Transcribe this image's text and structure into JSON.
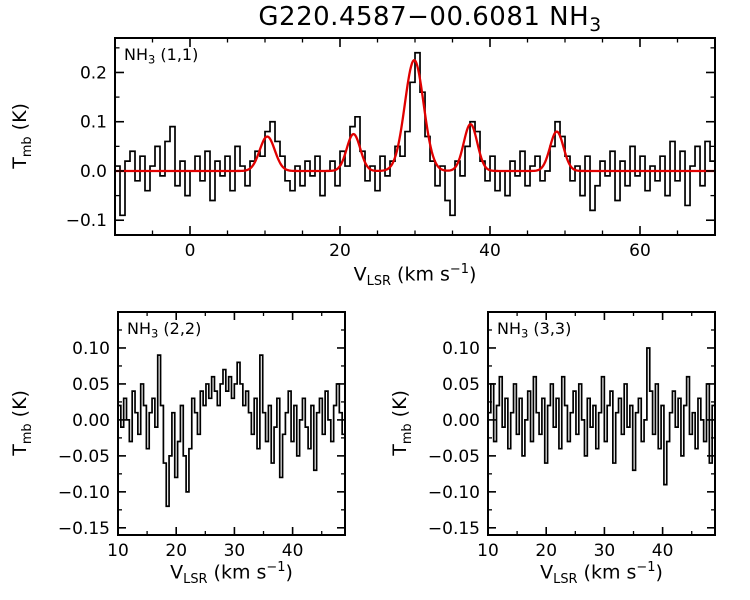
{
  "title": {
    "text": "G220.4587−00.6081 NH",
    "sub": "3"
  },
  "axis_labels": {
    "y": {
      "prefix": "T",
      "sub": "mb",
      "suffix": " (K)"
    },
    "x": {
      "prefix": "V",
      "sub": "LSR",
      "mid": " (km s",
      "sup": "−1",
      "suffix": ")"
    }
  },
  "colors": {
    "trace": "#000000",
    "fit": "#e00000",
    "background": "#ffffff"
  },
  "chart_data": [
    {
      "id": "nh3_1_1",
      "type": "line",
      "style": "histogram-step",
      "annotation": {
        "prefix": "NH",
        "sub": "3",
        "suffix": " (1,1)"
      },
      "xlim": [
        -10,
        70
      ],
      "ylim": [
        -0.13,
        0.27
      ],
      "xticks": [
        0,
        20,
        40,
        60
      ],
      "xtick_labels": [
        "0",
        "20",
        "40",
        "60"
      ],
      "x_minor_step": 5,
      "yticks": [
        0.2,
        0.1,
        0.0,
        -0.1
      ],
      "ytick_labels": [
        "0.2",
        "0.1",
        "0.0",
        "−0.1"
      ],
      "y_minor_step": 0.05,
      "x_start": -10,
      "dx": 0.6667,
      "spectrum": [
        0.01,
        -0.09,
        0.02,
        0.04,
        -0.02,
        0.03,
        -0.04,
        0.01,
        0.05,
        -0.01,
        0.06,
        0.09,
        -0.03,
        0.02,
        -0.05,
        0.0,
        0.03,
        -0.02,
        0.04,
        -0.06,
        0.02,
        -0.01,
        0.03,
        -0.04,
        0.05,
        0.01,
        -0.03,
        0.02,
        0.04,
        0.03,
        0.08,
        0.1,
        0.06,
        0.03,
        -0.02,
        -0.04,
        0.01,
        -0.03,
        0.02,
        -0.01,
        0.03,
        -0.05,
        0.0,
        0.02,
        -0.03,
        0.04,
        0.01,
        0.09,
        0.11,
        0.04,
        -0.02,
        0.01,
        -0.04,
        0.03,
        -0.01,
        0.02,
        0.05,
        0.03,
        0.08,
        0.18,
        0.24,
        0.16,
        0.07,
        0.02,
        -0.03,
        0.01,
        -0.06,
        -0.09,
        0.02,
        -0.01,
        0.05,
        0.1,
        0.08,
        0.02,
        -0.02,
        0.03,
        -0.04,
        0.0,
        -0.05,
        0.02,
        -0.01,
        0.04,
        -0.03,
        0.01,
        0.03,
        -0.02,
        0.0,
        0.05,
        0.1,
        0.07,
        0.03,
        -0.02,
        0.01,
        -0.05,
        0.03,
        -0.08,
        -0.03,
        0.02,
        -0.01,
        0.04,
        -0.06,
        0.02,
        -0.03,
        0.05,
        -0.01,
        0.03,
        -0.04,
        0.01,
        -0.02,
        0.03,
        -0.05,
        0.06,
        -0.02,
        0.04,
        -0.07,
        0.01,
        0.05,
        -0.03,
        0.06,
        0.02
      ],
      "fit": {
        "color": "#e00000",
        "baseline": 0.0,
        "components": [
          {
            "center": 10.3,
            "amplitude": 0.07,
            "sigma": 1.0
          },
          {
            "center": 21.8,
            "amplitude": 0.075,
            "sigma": 0.9
          },
          {
            "center": 29.9,
            "amplitude": 0.225,
            "sigma": 1.25
          },
          {
            "center": 37.4,
            "amplitude": 0.095,
            "sigma": 0.9
          },
          {
            "center": 48.9,
            "amplitude": 0.08,
            "sigma": 0.9
          }
        ]
      }
    },
    {
      "id": "nh3_2_2",
      "type": "line",
      "style": "histogram-step",
      "annotation": {
        "prefix": "NH",
        "sub": "3",
        "suffix": " (2,2)"
      },
      "xlim": [
        10,
        49
      ],
      "ylim": [
        -0.16,
        0.15
      ],
      "xticks": [
        10,
        20,
        30,
        40
      ],
      "xtick_labels": [
        "10",
        "20",
        "30",
        "40"
      ],
      "x_minor_step": 5,
      "yticks": [
        0.1,
        0.05,
        0.0,
        -0.05,
        -0.1,
        -0.15
      ],
      "ytick_labels": [
        "0.10",
        "0.05",
        "0.00",
        "−0.05",
        "−0.10",
        "−0.15"
      ],
      "y_minor_step": 0.025,
      "x_start": 10,
      "dx": 0.4875,
      "spectrum": [
        0.02,
        -0.01,
        0.03,
        0.0,
        -0.03,
        0.04,
        0.01,
        -0.02,
        0.05,
        0.02,
        -0.04,
        0.01,
        0.03,
        -0.01,
        0.09,
        0.02,
        -0.06,
        -0.12,
        -0.05,
        0.01,
        -0.08,
        -0.03,
        0.02,
        -0.05,
        -0.1,
        -0.04,
        0.03,
        0.01,
        -0.02,
        0.04,
        0.02,
        0.05,
        0.03,
        0.06,
        0.04,
        0.02,
        0.05,
        0.07,
        0.04,
        0.06,
        0.03,
        0.05,
        0.08,
        0.05,
        0.02,
        0.04,
        0.01,
        -0.02,
        0.03,
        -0.04,
        0.09,
        0.01,
        -0.03,
        0.02,
        -0.06,
        -0.01,
        0.03,
        -0.08,
        -0.02,
        0.01,
        0.04,
        -0.03,
        0.02,
        -0.05,
        0.0,
        0.03,
        -0.01,
        -0.04,
        0.02,
        -0.07,
        0.01,
        0.03,
        -0.02,
        0.04,
        0.0,
        -0.03,
        0.02,
        0.05,
        0.01,
        -0.02
      ]
    },
    {
      "id": "nh3_3_3",
      "type": "line",
      "style": "histogram-step",
      "annotation": {
        "prefix": "NH",
        "sub": "3",
        "suffix": " (3,3)"
      },
      "xlim": [
        10,
        49
      ],
      "ylim": [
        -0.16,
        0.15
      ],
      "xticks": [
        10,
        20,
        30,
        40
      ],
      "xtick_labels": [
        "10",
        "20",
        "30",
        "40"
      ],
      "x_minor_step": 5,
      "yticks": [
        0.1,
        0.05,
        0.0,
        -0.05,
        -0.1,
        -0.15
      ],
      "ytick_labels": [
        "0.10",
        "0.05",
        "0.00",
        "−0.05",
        "−0.10",
        "−0.15"
      ],
      "y_minor_step": 0.025,
      "x_start": 10,
      "dx": 0.4875,
      "spectrum": [
        0.01,
        0.05,
        -0.03,
        0.02,
        0.06,
        -0.01,
        0.03,
        -0.04,
        0.01,
        0.05,
        -0.02,
        0.03,
        -0.05,
        0.0,
        0.04,
        -0.03,
        0.06,
        0.01,
        -0.02,
        0.03,
        -0.06,
        0.02,
        0.05,
        -0.01,
        0.03,
        -0.04,
        0.06,
        0.02,
        -0.03,
        0.01,
        0.04,
        -0.02,
        0.05,
        0.0,
        -0.05,
        0.03,
        -0.01,
        0.02,
        -0.04,
        0.01,
        0.06,
        -0.03,
        0.02,
        0.04,
        -0.06,
        0.01,
        0.03,
        -0.02,
        0.05,
        -0.01,
        0.02,
        -0.07,
        0.01,
        0.03,
        -0.03,
        0.0,
        0.1,
        0.04,
        -0.02,
        0.05,
        -0.04,
        0.02,
        -0.09,
        -0.03,
        0.01,
        0.04,
        -0.01,
        0.03,
        -0.05,
        0.02,
        0.06,
        -0.02,
        0.01,
        -0.04,
        0.03,
        0.0,
        -0.03,
        0.05,
        -0.06,
        0.02
      ]
    }
  ]
}
